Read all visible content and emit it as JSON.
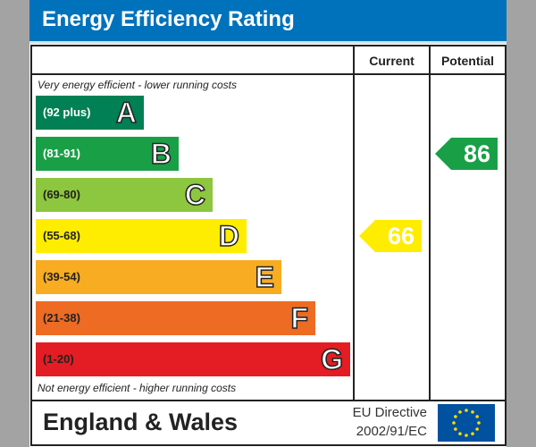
{
  "title": "Energy Efficiency Rating",
  "columns": {
    "current": "Current",
    "potential": "Potential"
  },
  "top_note": "Very energy efficient - lower running costs",
  "bottom_note": "Not energy efficient - higher running costs",
  "footer": {
    "region": "England & Wales",
    "directive_line1": "EU Directive",
    "directive_line2": "2002/91/EC",
    "flag": "eu-flag-icon"
  },
  "chart_data": {
    "type": "bar",
    "categories": [
      "A",
      "B",
      "C",
      "D",
      "E",
      "F",
      "G"
    ],
    "bands": [
      {
        "letter": "A",
        "range": "(92 plus)",
        "color": "#008054"
      },
      {
        "letter": "B",
        "range": "(81-91)",
        "color": "#19a047"
      },
      {
        "letter": "C",
        "range": "(69-80)",
        "color": "#8dc63f"
      },
      {
        "letter": "D",
        "range": "(55-68)",
        "color": "#ffed00"
      },
      {
        "letter": "E",
        "range": "(39-54)",
        "color": "#f7ac21"
      },
      {
        "letter": "F",
        "range": "(21-38)",
        "color": "#ed6b23"
      },
      {
        "letter": "G",
        "range": "(1-20)",
        "color": "#e31d23"
      }
    ],
    "current": {
      "value": "66",
      "band": "D",
      "color": "#ffed00"
    },
    "potential": {
      "value": "86",
      "band": "B",
      "color": "#19a047"
    }
  }
}
